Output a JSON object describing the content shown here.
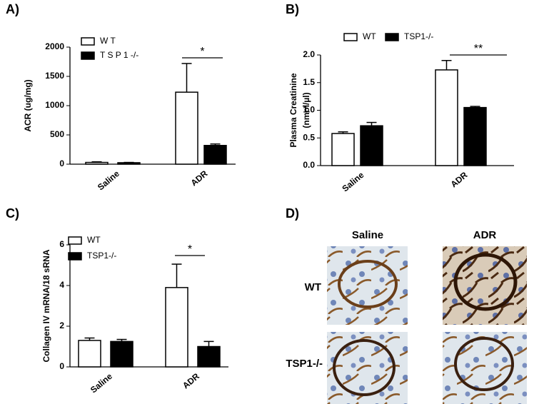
{
  "chart_data": [
    {
      "type": "bar",
      "panel": "A)",
      "ylabel": [
        "ACR (ug/mg)"
      ],
      "categories": [
        "Saline",
        "ADR"
      ],
      "series": [
        {
          "name": "W T",
          "color": "#ffffff",
          "values": [
            30,
            1230
          ],
          "errors": [
            10,
            490
          ]
        },
        {
          "name": "T S P 1 -/-",
          "color": "#000000",
          "values": [
            25,
            320
          ],
          "errors": [
            5,
            25
          ]
        }
      ],
      "ylim": [
        0,
        2000
      ],
      "yticks": [
        0,
        500,
        1000,
        1500,
        2000
      ],
      "significance": "*"
    },
    {
      "type": "bar",
      "panel": "B)",
      "ylabel": [
        "Plasma Creatinine",
        "(nmol/µl)"
      ],
      "categories": [
        "Saline",
        "ADR"
      ],
      "series": [
        {
          "name": "WT",
          "color": "#ffffff",
          "values": [
            0.58,
            1.73
          ],
          "errors": [
            0.03,
            0.17
          ]
        },
        {
          "name": "TSP1-/-",
          "color": "#000000",
          "values": [
            0.72,
            1.05
          ],
          "errors": [
            0.06,
            0.02
          ]
        }
      ],
      "ylim": [
        0,
        2
      ],
      "yticks": [
        {
          "value": 0,
          "label": "0.0"
        },
        0.5,
        {
          "value": 1,
          "label": "1.0"
        },
        1.5,
        {
          "value": 2,
          "label": "2.0"
        }
      ],
      "significance": "**"
    },
    {
      "type": "bar",
      "panel": "C)",
      "ylabel": [
        "Collagen IV mRNA/18 sRNA"
      ],
      "categories": [
        "Saline",
        "ADR"
      ],
      "series": [
        {
          "name": "WT",
          "color": "#ffffff",
          "values": [
            1.3,
            3.9
          ],
          "errors": [
            0.12,
            1.15
          ]
        },
        {
          "name": "TSP1-/-",
          "color": "#000000",
          "values": [
            1.25,
            1.0
          ],
          "errors": [
            0.1,
            0.25
          ]
        }
      ],
      "ylim": [
        0,
        6
      ],
      "yticks": [
        0,
        2,
        4,
        6
      ],
      "significance": "*"
    }
  ],
  "panel_d": {
    "label": "D)",
    "columns": [
      "Saline",
      "ADR"
    ],
    "rows": [
      "WT",
      "TSP1-/-"
    ]
  }
}
